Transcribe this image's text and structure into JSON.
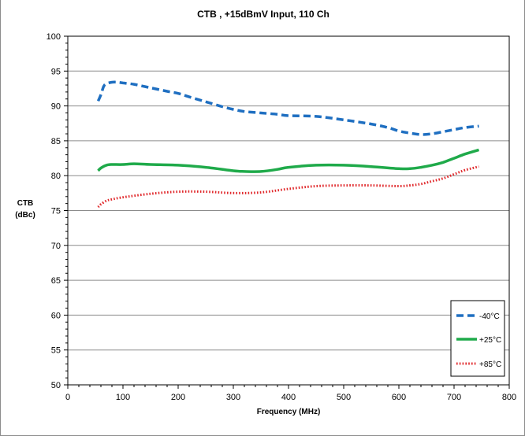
{
  "chart_data": {
    "type": "line",
    "title": "CTB , +15dBmV Input, 110 Ch",
    "xlabel": "Frequency (MHz)",
    "ylabel_line1": "CTB",
    "ylabel_line2": "(dBc)",
    "xlim": [
      0,
      800
    ],
    "ylim": [
      50,
      100
    ],
    "x_ticks": [
      "0",
      "100",
      "200",
      "300",
      "400",
      "500",
      "600",
      "700",
      "800"
    ],
    "y_ticks": [
      "100",
      "95",
      "90",
      "85",
      "80",
      "75",
      "70",
      "65",
      "60",
      "55",
      "50"
    ],
    "grid": "horizontal major lines",
    "legend_position": "bottom-right",
    "series": [
      {
        "name": "-40°C",
        "color": "#1f6fc1",
        "style": "dashed",
        "x": [
          55,
          60,
          65,
          70,
          80,
          90,
          100,
          120,
          150,
          180,
          200,
          220,
          250,
          280,
          300,
          320,
          350,
          380,
          400,
          450,
          500,
          550,
          580,
          600,
          620,
          640,
          660,
          680,
          700,
          720,
          745
        ],
        "y": [
          90.7,
          91.6,
          92.8,
          93.2,
          93.4,
          93.4,
          93.3,
          93.1,
          92.6,
          92.1,
          91.8,
          91.3,
          90.6,
          89.9,
          89.5,
          89.2,
          89.0,
          88.8,
          88.6,
          88.5,
          88.0,
          87.4,
          86.9,
          86.4,
          86.1,
          85.9,
          86.0,
          86.3,
          86.6,
          86.9,
          87.1
        ]
      },
      {
        "name": "+25°C",
        "color": "#1faa4a",
        "style": "solid",
        "x": [
          55,
          60,
          70,
          80,
          100,
          120,
          150,
          200,
          250,
          300,
          320,
          350,
          380,
          400,
          450,
          500,
          550,
          600,
          620,
          640,
          660,
          680,
          700,
          720,
          745
        ],
        "y": [
          80.7,
          81.1,
          81.5,
          81.6,
          81.6,
          81.7,
          81.6,
          81.5,
          81.2,
          80.7,
          80.6,
          80.6,
          80.9,
          81.2,
          81.5,
          81.5,
          81.3,
          81.0,
          81.0,
          81.2,
          81.5,
          81.9,
          82.5,
          83.1,
          83.7
        ]
      },
      {
        "name": "+85°C",
        "color": "#e0272a",
        "style": "dotted",
        "x": [
          55,
          60,
          70,
          80,
          100,
          150,
          200,
          250,
          300,
          350,
          400,
          450,
          500,
          550,
          600,
          620,
          640,
          660,
          680,
          700,
          720,
          745
        ],
        "y": [
          75.5,
          75.9,
          76.4,
          76.6,
          76.9,
          77.4,
          77.7,
          77.7,
          77.5,
          77.6,
          78.1,
          78.5,
          78.6,
          78.6,
          78.5,
          78.6,
          78.8,
          79.2,
          79.6,
          80.2,
          80.8,
          81.3
        ]
      }
    ]
  }
}
